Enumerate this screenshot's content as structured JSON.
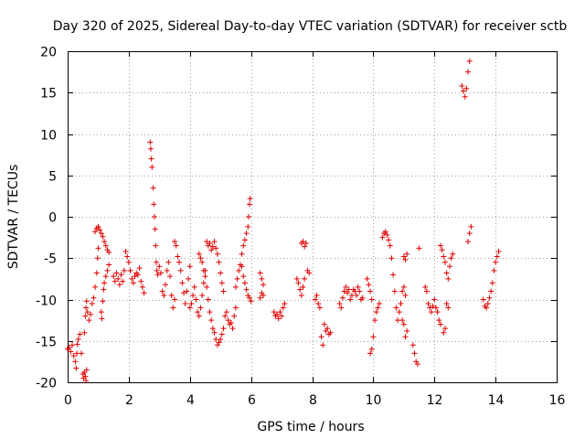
{
  "chart_data": {
    "type": "scatter",
    "title": "Day 320 of 2025, Sidereal Day-to-day VTEC variation (SDTVAR) for receiver sctb",
    "xlabel": "GPS time / hours",
    "ylabel": "SDTVAR / TECUs",
    "xlim": [
      0,
      16
    ],
    "ylim": [
      -20,
      20
    ],
    "xticks": [
      0,
      2,
      4,
      6,
      8,
      10,
      12,
      14,
      16
    ],
    "yticks": [
      -20,
      -15,
      -10,
      -5,
      0,
      5,
      10,
      15,
      20
    ],
    "grid": true,
    "marker": "+",
    "marker_color": "#e00000",
    "series": [
      {
        "name": "sctb",
        "points": [
          [
            0.0,
            -16.0
          ],
          [
            0.05,
            -15.8
          ],
          [
            0.1,
            -16.3
          ],
          [
            0.15,
            -15.5
          ],
          [
            0.2,
            -16.8
          ],
          [
            0.25,
            -17.5
          ],
          [
            0.28,
            -18.3
          ],
          [
            0.3,
            -16.5
          ],
          [
            0.32,
            -15.4
          ],
          [
            0.35,
            -14.8
          ],
          [
            0.4,
            -14.2
          ],
          [
            0.45,
            -16.5
          ],
          [
            0.5,
            -19.0
          ],
          [
            0.52,
            -19.5
          ],
          [
            0.55,
            -18.8
          ],
          [
            0.58,
            -19.3
          ],
          [
            0.6,
            -19.8
          ],
          [
            0.62,
            -18.5
          ],
          [
            0.55,
            -14.0
          ],
          [
            0.58,
            -12.0
          ],
          [
            0.6,
            -11.0
          ],
          [
            0.62,
            -10.2
          ],
          [
            0.65,
            -11.5
          ],
          [
            0.7,
            -12.5
          ],
          [
            0.75,
            -11.8
          ],
          [
            0.8,
            -10.5
          ],
          [
            0.85,
            -9.8
          ],
          [
            0.9,
            -8.5
          ],
          [
            0.95,
            -6.8
          ],
          [
            0.98,
            -5.0
          ],
          [
            1.0,
            -3.8
          ],
          [
            0.9,
            -1.8
          ],
          [
            0.95,
            -1.4
          ],
          [
            1.0,
            -1.2
          ],
          [
            1.05,
            -1.6
          ],
          [
            1.1,
            -2.0
          ],
          [
            1.15,
            -2.4
          ],
          [
            1.2,
            -3.0
          ],
          [
            1.25,
            -3.5
          ],
          [
            1.3,
            -4.0
          ],
          [
            1.35,
            -4.3
          ],
          [
            1.1,
            -11.5
          ],
          [
            1.12,
            -12.3
          ],
          [
            1.15,
            -10.2
          ],
          [
            1.18,
            -8.8
          ],
          [
            1.2,
            -8.0
          ],
          [
            1.25,
            -7.2
          ],
          [
            1.3,
            -6.5
          ],
          [
            1.35,
            -5.8
          ],
          [
            1.5,
            -7.2
          ],
          [
            1.55,
            -7.8
          ],
          [
            1.6,
            -6.8
          ],
          [
            1.65,
            -7.5
          ],
          [
            1.7,
            -8.2
          ],
          [
            1.75,
            -7.0
          ],
          [
            1.8,
            -7.8
          ],
          [
            1.85,
            -6.5
          ],
          [
            1.9,
            -4.2
          ],
          [
            1.95,
            -4.8
          ],
          [
            2.0,
            -5.5
          ],
          [
            2.05,
            -6.5
          ],
          [
            2.1,
            -7.5
          ],
          [
            2.15,
            -8.0
          ],
          [
            2.2,
            -7.2
          ],
          [
            2.25,
            -6.8
          ],
          [
            2.3,
            -7.0
          ],
          [
            2.35,
            -6.2
          ],
          [
            2.4,
            -7.8
          ],
          [
            2.45,
            -8.5
          ],
          [
            2.5,
            -9.2
          ],
          [
            2.7,
            9.0
          ],
          [
            2.72,
            8.2
          ],
          [
            2.74,
            7.0
          ],
          [
            2.76,
            6.0
          ],
          [
            2.8,
            3.5
          ],
          [
            2.82,
            1.5
          ],
          [
            2.84,
            0.0
          ],
          [
            2.86,
            -1.5
          ],
          [
            2.88,
            -3.5
          ],
          [
            2.9,
            -5.5
          ],
          [
            2.92,
            -6.5
          ],
          [
            2.95,
            -7.0
          ],
          [
            3.0,
            -6.0
          ],
          [
            3.05,
            -6.8
          ],
          [
            3.1,
            -9.0
          ],
          [
            3.15,
            -9.5
          ],
          [
            3.2,
            -8.2
          ],
          [
            3.25,
            -6.5
          ],
          [
            3.3,
            -5.5
          ],
          [
            3.35,
            -7.2
          ],
          [
            3.4,
            -9.5
          ],
          [
            3.45,
            -11.0
          ],
          [
            3.5,
            -10.0
          ],
          [
            3.5,
            -3.0
          ],
          [
            3.55,
            -3.5
          ],
          [
            3.6,
            -4.8
          ],
          [
            3.65,
            -5.5
          ],
          [
            3.7,
            -6.5
          ],
          [
            3.75,
            -8.0
          ],
          [
            3.8,
            -9.2
          ],
          [
            3.85,
            -10.5
          ],
          [
            3.9,
            -9.0
          ],
          [
            3.95,
            -7.5
          ],
          [
            4.0,
            -6.0
          ],
          [
            4.0,
            -11.0
          ],
          [
            4.05,
            -10.5
          ],
          [
            4.1,
            -9.5
          ],
          [
            4.15,
            -8.5
          ],
          [
            4.2,
            -10.0
          ],
          [
            4.25,
            -11.5
          ],
          [
            4.3,
            -12.0
          ],
          [
            4.35,
            -11.0
          ],
          [
            4.4,
            -9.5
          ],
          [
            4.45,
            -8.0
          ],
          [
            4.5,
            -6.5
          ],
          [
            4.3,
            -4.5
          ],
          [
            4.35,
            -5.0
          ],
          [
            4.4,
            -5.5
          ],
          [
            4.45,
            -6.5
          ],
          [
            4.5,
            -7.2
          ],
          [
            4.55,
            -8.5
          ],
          [
            4.6,
            -10.0
          ],
          [
            4.65,
            -11.5
          ],
          [
            4.7,
            -12.5
          ],
          [
            4.75,
            -13.5
          ],
          [
            4.8,
            -14.0
          ],
          [
            4.85,
            -14.8
          ],
          [
            4.9,
            -15.5
          ],
          [
            4.95,
            -15.2
          ],
          [
            5.0,
            -14.8
          ],
          [
            5.05,
            -14.2
          ],
          [
            5.1,
            -13.5
          ],
          [
            5.15,
            -12.0
          ],
          [
            5.2,
            -11.5
          ],
          [
            5.25,
            -12.5
          ],
          [
            5.3,
            -13.0
          ],
          [
            5.35,
            -12.8
          ],
          [
            5.4,
            -13.5
          ],
          [
            5.45,
            -12.0
          ],
          [
            5.5,
            -11.0
          ],
          [
            4.55,
            -3.0
          ],
          [
            4.6,
            -3.5
          ],
          [
            4.65,
            -3.2
          ],
          [
            4.7,
            -4.0
          ],
          [
            4.75,
            -3.6
          ],
          [
            4.8,
            -3.0
          ],
          [
            4.85,
            -3.8
          ],
          [
            4.9,
            -4.5
          ],
          [
            4.95,
            -5.5
          ],
          [
            5.0,
            -6.8
          ],
          [
            5.05,
            -8.0
          ],
          [
            5.1,
            -9.0
          ],
          [
            5.5,
            -8.5
          ],
          [
            5.55,
            -7.5
          ],
          [
            5.6,
            -6.5
          ],
          [
            5.65,
            -5.8
          ],
          [
            5.7,
            -4.5
          ],
          [
            5.75,
            -3.5
          ],
          [
            5.8,
            -2.8
          ],
          [
            5.85,
            -2.0
          ],
          [
            5.9,
            -1.2
          ],
          [
            5.92,
            0.0
          ],
          [
            5.95,
            1.5
          ],
          [
            5.97,
            2.2
          ],
          [
            5.7,
            -6.0
          ],
          [
            5.75,
            -7.2
          ],
          [
            5.8,
            -8.0
          ],
          [
            5.85,
            -8.8
          ],
          [
            5.9,
            -9.5
          ],
          [
            5.95,
            -9.8
          ],
          [
            6.0,
            -10.2
          ],
          [
            6.3,
            -6.8
          ],
          [
            6.35,
            -7.5
          ],
          [
            6.4,
            -8.2
          ],
          [
            6.3,
            -9.8
          ],
          [
            6.35,
            -9.2
          ],
          [
            6.4,
            -9.5
          ],
          [
            6.75,
            -11.5
          ],
          [
            6.8,
            -12.0
          ],
          [
            6.85,
            -11.8
          ],
          [
            6.9,
            -12.3
          ],
          [
            6.95,
            -11.5
          ],
          [
            7.0,
            -12.0
          ],
          [
            7.05,
            -11.0
          ],
          [
            7.1,
            -10.5
          ],
          [
            7.5,
            -7.5
          ],
          [
            7.55,
            -8.0
          ],
          [
            7.6,
            -8.8
          ],
          [
            7.65,
            -9.5
          ],
          [
            7.7,
            -8.5
          ],
          [
            7.75,
            -7.5
          ],
          [
            7.65,
            -3.2
          ],
          [
            7.7,
            -3.0
          ],
          [
            7.75,
            -3.6
          ],
          [
            7.8,
            -3.2
          ],
          [
            7.85,
            -6.5
          ],
          [
            7.9,
            -6.8
          ],
          [
            8.1,
            -10.0
          ],
          [
            8.15,
            -9.5
          ],
          [
            8.2,
            -10.5
          ],
          [
            8.25,
            -11.0
          ],
          [
            8.3,
            -14.5
          ],
          [
            8.35,
            -15.5
          ],
          [
            8.4,
            -13.0
          ],
          [
            8.45,
            -13.8
          ],
          [
            8.5,
            -13.5
          ],
          [
            8.55,
            -14.2
          ],
          [
            8.6,
            -14.0
          ],
          [
            8.9,
            -10.5
          ],
          [
            8.95,
            -11.0
          ],
          [
            9.0,
            -9.8
          ],
          [
            9.05,
            -9.0
          ],
          [
            9.1,
            -8.5
          ],
          [
            9.15,
            -9.2
          ],
          [
            9.2,
            -8.8
          ],
          [
            9.25,
            -10.0
          ],
          [
            9.3,
            -9.5
          ],
          [
            9.35,
            -8.8
          ],
          [
            9.4,
            -9.0
          ],
          [
            9.45,
            -9.5
          ],
          [
            9.5,
            -8.5
          ],
          [
            9.55,
            -9.0
          ],
          [
            9.6,
            -10.0
          ],
          [
            9.65,
            -9.8
          ],
          [
            9.8,
            -7.5
          ],
          [
            9.85,
            -8.2
          ],
          [
            9.9,
            -9.0
          ],
          [
            9.95,
            -10.0
          ],
          [
            9.9,
            -16.5
          ],
          [
            9.95,
            -16.0
          ],
          [
            10.0,
            -14.5
          ],
          [
            10.05,
            -12.5
          ],
          [
            10.1,
            -11.5
          ],
          [
            10.15,
            -11.0
          ],
          [
            10.2,
            -10.5
          ],
          [
            10.3,
            -2.5
          ],
          [
            10.35,
            -2.0
          ],
          [
            10.4,
            -1.8
          ],
          [
            10.45,
            -2.2
          ],
          [
            10.5,
            -2.8
          ],
          [
            10.55,
            -3.5
          ],
          [
            10.6,
            -5.0
          ],
          [
            10.65,
            -7.0
          ],
          [
            10.7,
            -9.0
          ],
          [
            10.75,
            -11.0
          ],
          [
            10.8,
            -12.5
          ],
          [
            10.85,
            -11.5
          ],
          [
            10.9,
            -10.5
          ],
          [
            10.95,
            -9.0
          ],
          [
            11.0,
            -8.5
          ],
          [
            11.05,
            -9.5
          ],
          [
            10.95,
            -12.5
          ],
          [
            11.0,
            -13.0
          ],
          [
            11.05,
            -14.5
          ],
          [
            11.1,
            -13.8
          ],
          [
            11.0,
            -4.8
          ],
          [
            11.05,
            -5.2
          ],
          [
            11.1,
            -4.5
          ],
          [
            11.3,
            -15.5
          ],
          [
            11.35,
            -16.5
          ],
          [
            11.4,
            -17.5
          ],
          [
            11.45,
            -17.8
          ],
          [
            11.5,
            -3.8
          ],
          [
            11.7,
            -8.5
          ],
          [
            11.75,
            -9.0
          ],
          [
            11.8,
            -10.5
          ],
          [
            11.85,
            -11.0
          ],
          [
            11.9,
            -11.5
          ],
          [
            11.95,
            -10.8
          ],
          [
            12.0,
            -10.0
          ],
          [
            12.05,
            -11.0
          ],
          [
            12.1,
            -11.5
          ],
          [
            12.15,
            -12.5
          ],
          [
            12.2,
            -13.0
          ],
          [
            12.2,
            -3.5
          ],
          [
            12.25,
            -4.0
          ],
          [
            12.3,
            -4.8
          ],
          [
            12.35,
            -5.5
          ],
          [
            12.4,
            -6.8
          ],
          [
            12.45,
            -7.5
          ],
          [
            12.5,
            -6.0
          ],
          [
            12.55,
            -5.0
          ],
          [
            12.6,
            -4.5
          ],
          [
            12.4,
            -10.5
          ],
          [
            12.45,
            -11.0
          ],
          [
            12.3,
            -14.0
          ],
          [
            12.35,
            -13.5
          ],
          [
            12.9,
            15.8
          ],
          [
            12.95,
            15.2
          ],
          [
            13.0,
            14.5
          ],
          [
            13.05,
            15.5
          ],
          [
            13.1,
            17.5
          ],
          [
            13.15,
            18.8
          ],
          [
            13.1,
            -3.0
          ],
          [
            13.15,
            -2.0
          ],
          [
            13.2,
            -1.2
          ],
          [
            13.6,
            -10.0
          ],
          [
            13.65,
            -10.8
          ],
          [
            13.7,
            -11.0
          ],
          [
            13.75,
            -10.5
          ],
          [
            13.8,
            -9.8
          ],
          [
            13.85,
            -9.0
          ],
          [
            13.9,
            -8.0
          ],
          [
            13.95,
            -6.5
          ],
          [
            14.0,
            -5.5
          ],
          [
            14.05,
            -4.8
          ],
          [
            14.1,
            -4.2
          ]
        ]
      }
    ]
  }
}
